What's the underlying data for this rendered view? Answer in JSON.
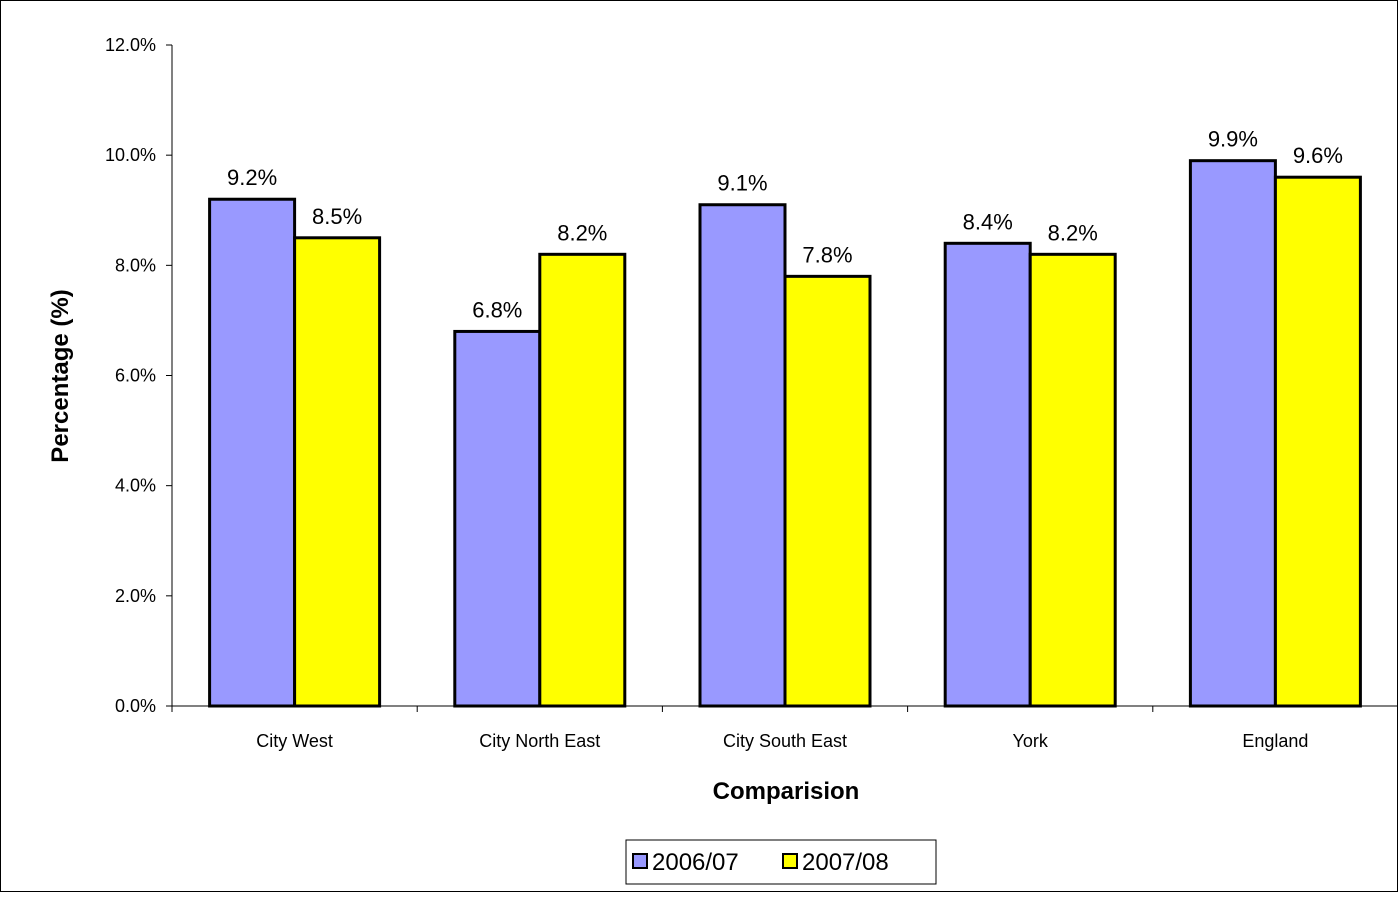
{
  "chart_data": {
    "type": "bar",
    "title": "",
    "xlabel": "Comparision",
    "ylabel": "Percentage (%)",
    "categories": [
      "City West",
      "City North East",
      "City South East",
      "York",
      "England"
    ],
    "series": [
      {
        "name": "2006/07",
        "color": "#9999ff",
        "values": [
          9.2,
          6.8,
          9.1,
          8.4,
          9.9
        ],
        "labels": [
          "9.2%",
          "6.8%",
          "9.1%",
          "8.4%",
          "9.9%"
        ]
      },
      {
        "name": "2007/08",
        "color": "#ffff00",
        "values": [
          8.5,
          8.2,
          7.8,
          8.2,
          9.6
        ],
        "labels": [
          "8.5%",
          "8.2%",
          "7.8%",
          "8.2%",
          "9.6%"
        ]
      }
    ],
    "ylim": [
      0,
      12
    ],
    "yticks": [
      0,
      2,
      4,
      6,
      8,
      10,
      12
    ],
    "ytick_labels": [
      "0.0%",
      "2.0%",
      "4.0%",
      "6.0%",
      "8.0%",
      "10.0%",
      "12.0%"
    ],
    "grid": false,
    "legend_position": "bottom-center"
  }
}
